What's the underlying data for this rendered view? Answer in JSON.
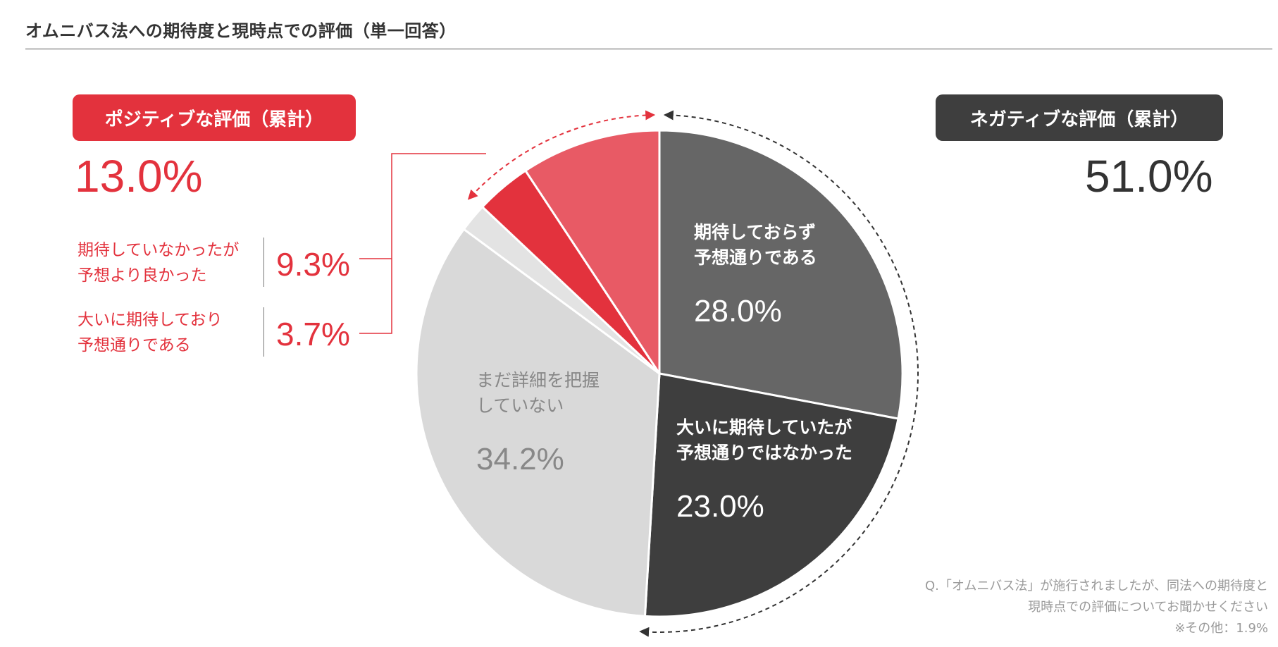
{
  "header": {
    "title": "オムニバス法への期待度と現時点での評価（単一回答）"
  },
  "positive": {
    "badge_label": "ポジティブな評価（累計）",
    "total": "13.0%",
    "items": [
      {
        "line1": "期待していなかったが",
        "line2": "予想より良かった",
        "value": "9.3%"
      },
      {
        "line1": "大いに期待しており",
        "line2": "予想通りである",
        "value": "3.7%"
      }
    ]
  },
  "negative": {
    "badge_label": "ネガティブな評価（累計）",
    "total": "51.0%"
  },
  "footnote": {
    "line1": "Q.「オムニバス法」が施行されましたが、同法への期待度と",
    "line2": "現時点での評価についてお聞かせください",
    "line3": "※その他：1.9%"
  },
  "colors": {
    "accent_red": "#e3323d",
    "light_red": "#e85a65",
    "dark_gray": "#3e3e3e",
    "mid_gray": "#666666",
    "light_gray": "#d9d9d9",
    "other_gray": "#e3e3e3"
  },
  "chart_data": {
    "type": "pie",
    "start_angle_deg": 0,
    "direction": "clockwise",
    "slices": [
      {
        "label_lines": [
          "期待しておらず",
          "予想通りである"
        ],
        "value": 28.0,
        "pct_text": "28.0%",
        "color": "#666666",
        "text_color": "#ffffff"
      },
      {
        "label_lines": [
          "大いに期待していたが",
          "予想通りではなかった"
        ],
        "value": 23.0,
        "pct_text": "23.0%",
        "color": "#3e3e3e",
        "text_color": "#ffffff"
      },
      {
        "label_lines": [
          "まだ詳細を把握",
          "していない"
        ],
        "value": 34.2,
        "pct_text": "34.2%",
        "color": "#d9d9d9",
        "text_color": "#888888"
      },
      {
        "label_lines": [],
        "value": 1.9,
        "pct_text": "",
        "color": "#e3e3e3",
        "text_color": "#888888"
      },
      {
        "label_lines": [],
        "value": 3.7,
        "pct_text": "",
        "color": "#e3323d",
        "text_color": "#ffffff"
      },
      {
        "label_lines": [],
        "value": 9.3,
        "pct_text": "",
        "color": "#e85a65",
        "text_color": "#ffffff"
      }
    ]
  }
}
